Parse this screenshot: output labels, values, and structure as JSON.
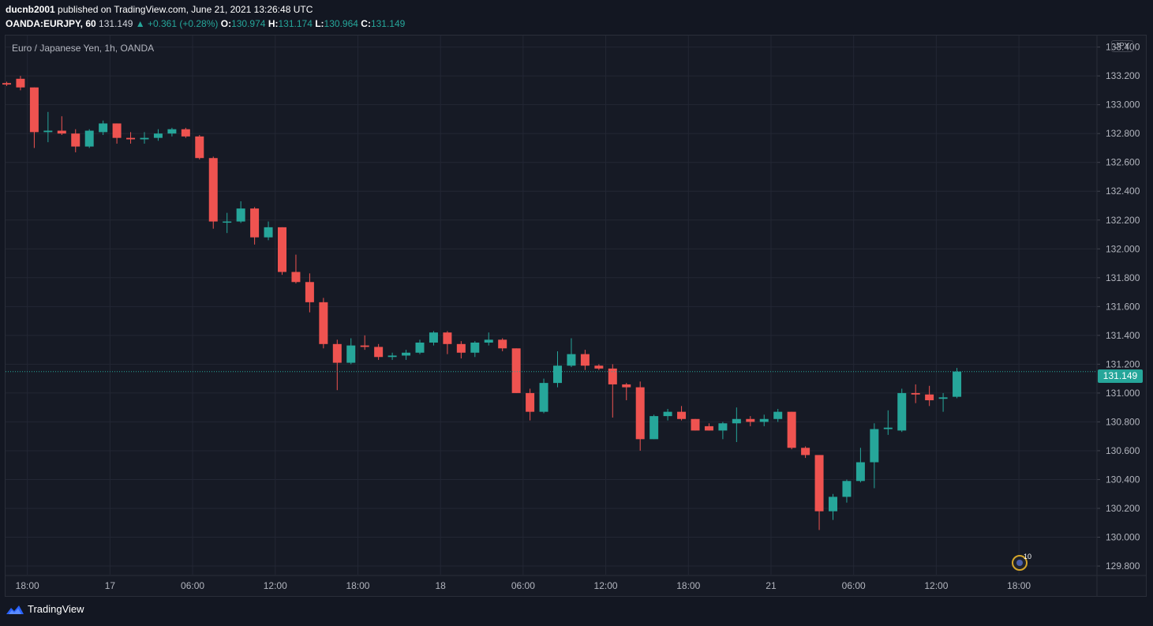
{
  "header": {
    "author": "ducnb2001",
    "published_text": " published on TradingView.com, June 21, 2021 13:26:48 UTC",
    "symbol": "OANDA:EURJPY, 60",
    "last": "131.149",
    "change": "▲ +0.361 (+0.28%)",
    "open_label": "O:",
    "open": "130.974",
    "high_label": "H:",
    "high": "131.174",
    "low_label": "L:",
    "low": "130.964",
    "close_label": "C:",
    "close": "131.149"
  },
  "pane_title": "Euro / Japanese Yen, 1h, OANDA",
  "currency": "JPY",
  "current_price_tag": "131.149",
  "event_badge": "10",
  "footer": {
    "brand": "TradingView"
  },
  "colors": {
    "up": "#26a69a",
    "down": "#ef5350",
    "grid": "#232734",
    "bg": "#131722"
  },
  "chart_data": {
    "type": "candlestick",
    "title": "Euro / Japanese Yen, 1h, OANDA",
    "ylim": [
      129.74,
      133.48
    ],
    "y_ticks": [
      "133.400",
      "133.200",
      "133.000",
      "132.800",
      "132.600",
      "132.400",
      "132.200",
      "132.000",
      "131.800",
      "131.600",
      "131.400",
      "131.200",
      "131.000",
      "130.800",
      "130.600",
      "130.400",
      "130.200",
      "130.000",
      "129.800"
    ],
    "x_ticks": [
      {
        "label": "18:00",
        "index": 1.5
      },
      {
        "label": "17",
        "index": 7.5
      },
      {
        "label": "06:00",
        "index": 13.5
      },
      {
        "label": "12:00",
        "index": 19.5
      },
      {
        "label": "18:00",
        "index": 25.5
      },
      {
        "label": "18",
        "index": 31.5
      },
      {
        "label": "06:00",
        "index": 37.5
      },
      {
        "label": "12:00",
        "index": 43.5
      },
      {
        "label": "18:00",
        "index": 49.5
      },
      {
        "label": "21",
        "index": 55.5
      },
      {
        "label": "06:00",
        "index": 61.5
      },
      {
        "label": "12:00",
        "index": 67.5
      },
      {
        "label": "18:00",
        "index": 73.5
      }
    ],
    "candles": [
      {
        "o": 133.15,
        "h": 133.16,
        "l": 133.13,
        "c": 133.14
      },
      {
        "o": 133.18,
        "h": 133.2,
        "l": 133.1,
        "c": 133.12
      },
      {
        "o": 133.12,
        "h": 133.12,
        "l": 132.7,
        "c": 132.81
      },
      {
        "o": 132.81,
        "h": 132.95,
        "l": 132.74,
        "c": 132.82
      },
      {
        "o": 132.82,
        "h": 132.92,
        "l": 132.79,
        "c": 132.8
      },
      {
        "o": 132.8,
        "h": 132.83,
        "l": 132.67,
        "c": 132.71
      },
      {
        "o": 132.71,
        "h": 132.83,
        "l": 132.7,
        "c": 132.82
      },
      {
        "o": 132.81,
        "h": 132.89,
        "l": 132.79,
        "c": 132.87
      },
      {
        "o": 132.87,
        "h": 132.87,
        "l": 132.73,
        "c": 132.77
      },
      {
        "o": 132.77,
        "h": 132.81,
        "l": 132.73,
        "c": 132.76
      },
      {
        "o": 132.76,
        "h": 132.81,
        "l": 132.73,
        "c": 132.77
      },
      {
        "o": 132.77,
        "h": 132.83,
        "l": 132.75,
        "c": 132.8
      },
      {
        "o": 132.8,
        "h": 132.84,
        "l": 132.78,
        "c": 132.83
      },
      {
        "o": 132.83,
        "h": 132.84,
        "l": 132.77,
        "c": 132.78
      },
      {
        "o": 132.78,
        "h": 132.79,
        "l": 132.62,
        "c": 132.63
      },
      {
        "o": 132.63,
        "h": 132.64,
        "l": 132.14,
        "c": 132.19
      },
      {
        "o": 132.19,
        "h": 132.25,
        "l": 132.11,
        "c": 132.19
      },
      {
        "o": 132.19,
        "h": 132.33,
        "l": 132.18,
        "c": 132.28
      },
      {
        "o": 132.28,
        "h": 132.29,
        "l": 132.03,
        "c": 132.08
      },
      {
        "o": 132.08,
        "h": 132.19,
        "l": 132.06,
        "c": 132.15
      },
      {
        "o": 132.15,
        "h": 132.15,
        "l": 131.82,
        "c": 131.84
      },
      {
        "o": 131.84,
        "h": 131.96,
        "l": 131.76,
        "c": 131.77
      },
      {
        "o": 131.77,
        "h": 131.83,
        "l": 131.56,
        "c": 131.63
      },
      {
        "o": 131.63,
        "h": 131.66,
        "l": 131.31,
        "c": 131.34
      },
      {
        "o": 131.34,
        "h": 131.37,
        "l": 131.02,
        "c": 131.21
      },
      {
        "o": 131.21,
        "h": 131.38,
        "l": 131.2,
        "c": 131.33
      },
      {
        "o": 131.33,
        "h": 131.4,
        "l": 131.3,
        "c": 131.32
      },
      {
        "o": 131.32,
        "h": 131.34,
        "l": 131.23,
        "c": 131.25
      },
      {
        "o": 131.25,
        "h": 131.28,
        "l": 131.23,
        "c": 131.26
      },
      {
        "o": 131.26,
        "h": 131.3,
        "l": 131.23,
        "c": 131.28
      },
      {
        "o": 131.28,
        "h": 131.37,
        "l": 131.27,
        "c": 131.35
      },
      {
        "o": 131.35,
        "h": 131.43,
        "l": 131.33,
        "c": 131.42
      },
      {
        "o": 131.42,
        "h": 131.43,
        "l": 131.27,
        "c": 131.34
      },
      {
        "o": 131.34,
        "h": 131.36,
        "l": 131.24,
        "c": 131.28
      },
      {
        "o": 131.28,
        "h": 131.36,
        "l": 131.25,
        "c": 131.35
      },
      {
        "o": 131.35,
        "h": 131.42,
        "l": 131.33,
        "c": 131.37
      },
      {
        "o": 131.37,
        "h": 131.38,
        "l": 131.29,
        "c": 131.31
      },
      {
        "o": 131.31,
        "h": 131.31,
        "l": 131.0,
        "c": 131.0
      },
      {
        "o": 131.0,
        "h": 131.03,
        "l": 130.81,
        "c": 130.87
      },
      {
        "o": 130.87,
        "h": 131.1,
        "l": 130.86,
        "c": 131.07
      },
      {
        "o": 131.07,
        "h": 131.29,
        "l": 131.04,
        "c": 131.19
      },
      {
        "o": 131.19,
        "h": 131.38,
        "l": 131.18,
        "c": 131.27
      },
      {
        "o": 131.27,
        "h": 131.3,
        "l": 131.16,
        "c": 131.19
      },
      {
        "o": 131.19,
        "h": 131.2,
        "l": 131.16,
        "c": 131.17
      },
      {
        "o": 131.17,
        "h": 131.2,
        "l": 130.83,
        "c": 131.06
      },
      {
        "o": 131.06,
        "h": 131.07,
        "l": 130.95,
        "c": 131.04
      },
      {
        "o": 131.04,
        "h": 131.08,
        "l": 130.6,
        "c": 130.68
      },
      {
        "o": 130.68,
        "h": 130.85,
        "l": 130.68,
        "c": 130.84
      },
      {
        "o": 130.84,
        "h": 130.89,
        "l": 130.81,
        "c": 130.87
      },
      {
        "o": 130.87,
        "h": 130.91,
        "l": 130.81,
        "c": 130.82
      },
      {
        "o": 130.82,
        "h": 130.82,
        "l": 130.74,
        "c": 130.74
      },
      {
        "o": 130.77,
        "h": 130.79,
        "l": 130.74,
        "c": 130.74
      },
      {
        "o": 130.74,
        "h": 130.8,
        "l": 130.68,
        "c": 130.79
      },
      {
        "o": 130.79,
        "h": 130.9,
        "l": 130.66,
        "c": 130.82
      },
      {
        "o": 130.82,
        "h": 130.84,
        "l": 130.77,
        "c": 130.8
      },
      {
        "o": 130.8,
        "h": 130.85,
        "l": 130.77,
        "c": 130.82
      },
      {
        "o": 130.82,
        "h": 130.89,
        "l": 130.8,
        "c": 130.87
      },
      {
        "o": 130.87,
        "h": 130.87,
        "l": 130.61,
        "c": 130.62
      },
      {
        "o": 130.62,
        "h": 130.63,
        "l": 130.55,
        "c": 130.57
      },
      {
        "o": 130.57,
        "h": 130.57,
        "l": 130.05,
        "c": 130.18
      },
      {
        "o": 130.18,
        "h": 130.3,
        "l": 130.12,
        "c": 130.28
      },
      {
        "o": 130.28,
        "h": 130.4,
        "l": 130.24,
        "c": 130.39
      },
      {
        "o": 130.39,
        "h": 130.62,
        "l": 130.38,
        "c": 130.52
      },
      {
        "o": 130.52,
        "h": 130.79,
        "l": 130.34,
        "c": 130.75
      },
      {
        "o": 130.75,
        "h": 130.88,
        "l": 130.71,
        "c": 130.76
      },
      {
        "o": 130.74,
        "h": 131.03,
        "l": 130.73,
        "c": 131.0
      },
      {
        "o": 131.0,
        "h": 131.06,
        "l": 130.93,
        "c": 130.99
      },
      {
        "o": 130.99,
        "h": 131.05,
        "l": 130.91,
        "c": 130.95
      },
      {
        "o": 130.96,
        "h": 131.0,
        "l": 130.87,
        "c": 130.97
      },
      {
        "o": 130.974,
        "h": 131.174,
        "l": 130.964,
        "c": 131.149
      }
    ]
  }
}
